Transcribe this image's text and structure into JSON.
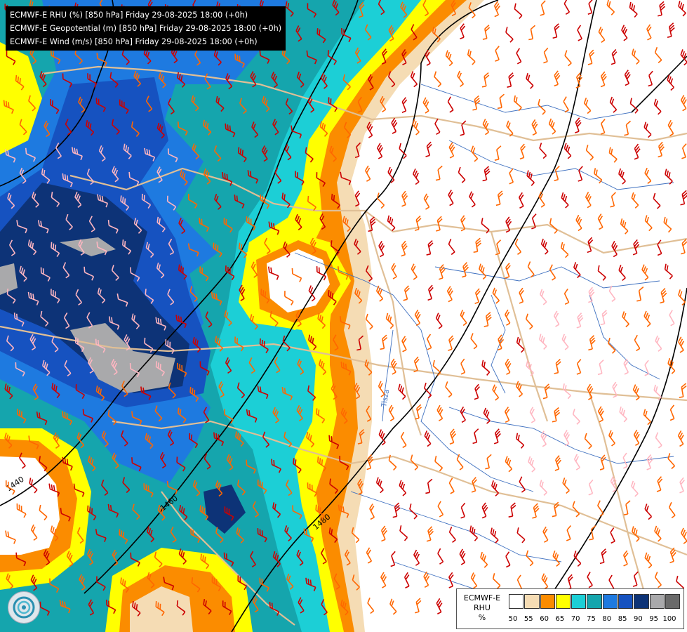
{
  "header": {
    "title_lines": [
      "ECMWF-E RHU (%) [850 hPa] Friday 29-08-2025 18:00 (+0h)",
      "ECMWF-E Geopotential (m) [850 hPa] Friday 29-08-2025 18:00 (+0h)",
      "ECMWF-E Wind (m/s) [850 hPa] Friday 29-08-2025 18:00 (+0h)"
    ]
  },
  "contour_labels": [
    "1440",
    "1460",
    "1480"
  ],
  "legend": {
    "label_lines": [
      "ECMWF-E",
      "RHU",
      "%"
    ],
    "ticks": [
      "50",
      "55",
      "60",
      "65",
      "70",
      "75",
      "80",
      "85",
      "90",
      "95",
      "100"
    ],
    "colors": [
      "#ffffff",
      "#f5dcb4",
      "#fb8c00",
      "#ffff00",
      "#1ccfd6",
      "#15a5ad",
      "#1e7ae0",
      "#1652c0",
      "#0d3377",
      "#a9a9ab",
      "#6a6a6a"
    ]
  },
  "map_features": {
    "river_label": "Tisza",
    "contour_color": "#000000",
    "border_color": "#e0bf96",
    "river_color": "#3d6fbf",
    "wind_barb_colors": [
      "#cc0000",
      "#ff6600",
      "#ffb6c1"
    ]
  },
  "logo": {
    "icon": "ecmwf-swirl-icon"
  }
}
